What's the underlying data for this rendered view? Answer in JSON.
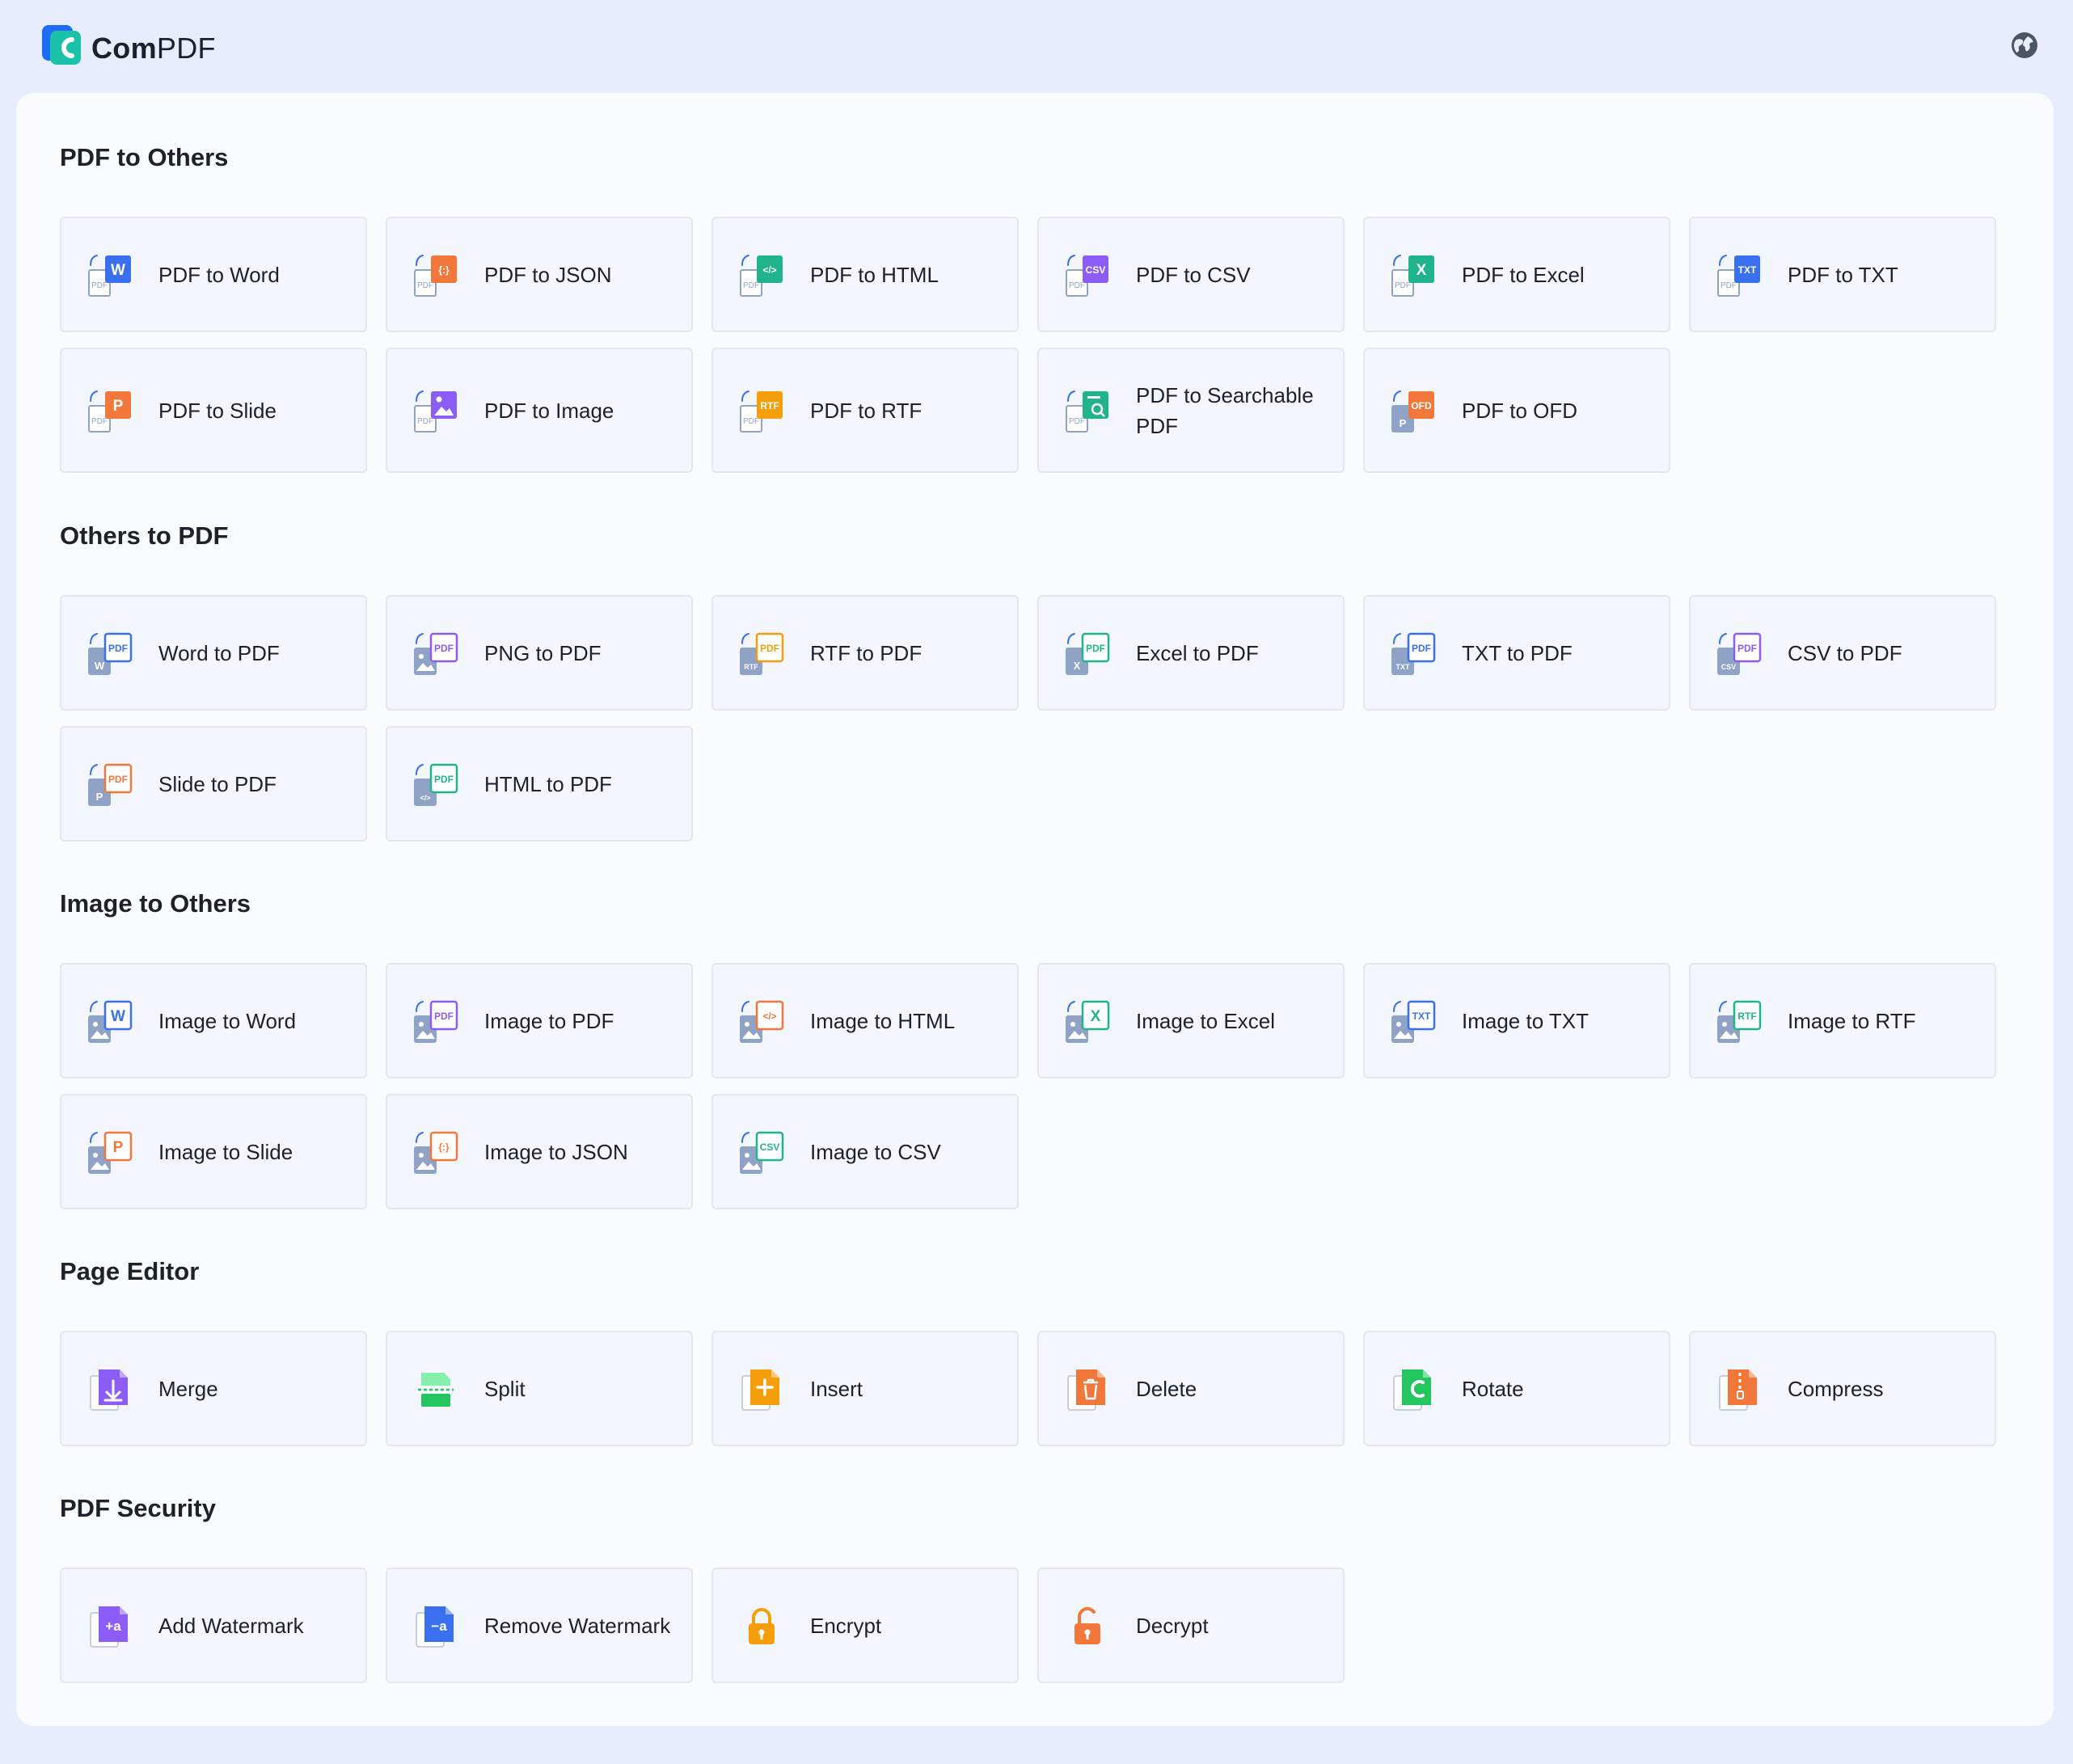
{
  "app": {
    "brand_prefix": "Com",
    "brand_suffix": "PDF",
    "logo_icon": "compdf-logo-icon",
    "language_icon": "globe-icon"
  },
  "colors": {
    "background": "#e8edfd",
    "panel": "#fafbfe",
    "card": "#f3f6fc",
    "card_border": "#e3e8f0",
    "blue": "#3a6ff0",
    "orange": "#f2773a",
    "teal": "#21b48a",
    "purple": "#8b5cf6",
    "green": "#22c55e",
    "amber": "#f59e0b",
    "gray": "#8fa3c7"
  },
  "sections": [
    {
      "title": "PDF to Others",
      "items": [
        {
          "label": "PDF to Word",
          "icon": "pdf-to-word-icon",
          "badge": "W",
          "color": "#3a6ff0"
        },
        {
          "label": "PDF to JSON",
          "icon": "pdf-to-json-icon",
          "badge": "{:}",
          "color": "#f2773a"
        },
        {
          "label": "PDF to HTML",
          "icon": "pdf-to-html-icon",
          "badge": "</>",
          "color": "#21b48a"
        },
        {
          "label": "PDF to CSV",
          "icon": "pdf-to-csv-icon",
          "badge": "CSV",
          "color": "#8b5cf6"
        },
        {
          "label": "PDF to Excel",
          "icon": "pdf-to-excel-icon",
          "badge": "X",
          "color": "#21b48a"
        },
        {
          "label": "PDF to TXT",
          "icon": "pdf-to-txt-icon",
          "badge": "TXT",
          "color": "#3a6ff0"
        },
        {
          "label": "PDF to Slide",
          "icon": "pdf-to-slide-icon",
          "badge": "P",
          "color": "#f2773a"
        },
        {
          "label": "PDF to Image",
          "icon": "pdf-to-image-icon",
          "badge": "img",
          "color": "#8b5cf6"
        },
        {
          "label": "PDF to RTF",
          "icon": "pdf-to-rtf-icon",
          "badge": "RTF",
          "color": "#f59e0b"
        },
        {
          "label": "PDF to Searchable PDF",
          "icon": "pdf-to-searchable-pdf-icon",
          "badge": "search",
          "color": "#21b48a"
        },
        {
          "label": "PDF to OFD",
          "icon": "pdf-to-ofd-icon",
          "badge": "OFD",
          "color": "#f2773a"
        }
      ]
    },
    {
      "title": "Others to PDF",
      "items": [
        {
          "label": "Word to PDF",
          "icon": "word-to-pdf-icon",
          "badge": "W",
          "color": "#3a6ff0"
        },
        {
          "label": "PNG to PDF",
          "icon": "png-to-pdf-icon",
          "badge": "img",
          "color": "#8b5cf6"
        },
        {
          "label": "RTF to PDF",
          "icon": "rtf-to-pdf-icon",
          "badge": "RTF",
          "color": "#f59e0b"
        },
        {
          "label": "Excel to PDF",
          "icon": "excel-to-pdf-icon",
          "badge": "X",
          "color": "#21b48a"
        },
        {
          "label": "TXT to PDF",
          "icon": "txt-to-pdf-icon",
          "badge": "TXT",
          "color": "#3a6ff0"
        },
        {
          "label": "CSV to PDF",
          "icon": "csv-to-pdf-icon",
          "badge": "CSV",
          "color": "#8b5cf6"
        },
        {
          "label": "Slide to PDF",
          "icon": "slide-to-pdf-icon",
          "badge": "P",
          "color": "#f2773a"
        },
        {
          "label": "HTML to PDF",
          "icon": "html-to-pdf-icon",
          "badge": "</>",
          "color": "#21b48a"
        }
      ]
    },
    {
      "title": "Image to Others",
      "items": [
        {
          "label": "Image to Word",
          "icon": "image-to-word-icon",
          "badge": "W",
          "color": "#3a6ff0"
        },
        {
          "label": "Image to PDF",
          "icon": "image-to-pdf-icon",
          "badge": "PDF",
          "color": "#8b5cf6"
        },
        {
          "label": "Image to HTML",
          "icon": "image-to-html-icon",
          "badge": "</>",
          "color": "#f2773a"
        },
        {
          "label": "Image to Excel",
          "icon": "image-to-excel-icon",
          "badge": "X",
          "color": "#21b48a"
        },
        {
          "label": "Image to TXT",
          "icon": "image-to-txt-icon",
          "badge": "TXT",
          "color": "#3a6ff0"
        },
        {
          "label": "Image to RTF",
          "icon": "image-to-rtf-icon",
          "badge": "RTF",
          "color": "#21b48a"
        },
        {
          "label": "Image to Slide",
          "icon": "image-to-slide-icon",
          "badge": "P",
          "color": "#f2773a"
        },
        {
          "label": "Image to JSON",
          "icon": "image-to-json-icon",
          "badge": "{:}",
          "color": "#f2773a"
        },
        {
          "label": "Image to CSV",
          "icon": "image-to-csv-icon",
          "badge": "CSV",
          "color": "#21b48a"
        }
      ]
    },
    {
      "title": "Page Editor",
      "items": [
        {
          "label": "Merge",
          "icon": "merge-icon",
          "color": "#8b5cf6"
        },
        {
          "label": "Split",
          "icon": "split-icon",
          "color": "#22c55e"
        },
        {
          "label": "Insert",
          "icon": "insert-icon",
          "color": "#f59e0b"
        },
        {
          "label": "Delete",
          "icon": "delete-icon",
          "color": "#f2773a"
        },
        {
          "label": "Rotate",
          "icon": "rotate-icon",
          "color": "#22c55e"
        },
        {
          "label": "Compress",
          "icon": "compress-icon",
          "color": "#f2773a"
        }
      ]
    },
    {
      "title": "PDF Security",
      "items": [
        {
          "label": "Add Watermark",
          "icon": "add-watermark-icon",
          "color": "#8b5cf6"
        },
        {
          "label": "Remove Watermark",
          "icon": "remove-watermark-icon",
          "color": "#3a6ff0"
        },
        {
          "label": "Encrypt",
          "icon": "encrypt-lock-icon",
          "color": "#f59e0b"
        },
        {
          "label": "Decrypt",
          "icon": "decrypt-unlock-icon",
          "color": "#f2773a"
        }
      ]
    }
  ]
}
